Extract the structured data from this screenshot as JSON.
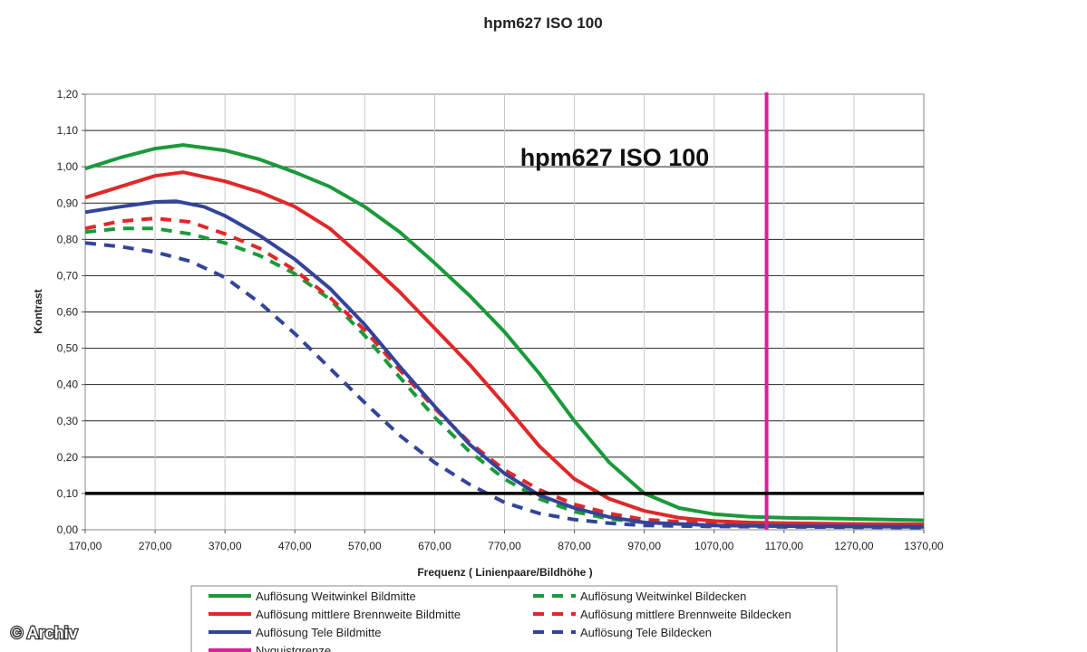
{
  "chart_data": {
    "type": "line",
    "title": "hpm627 ISO 100",
    "inner_title": "hpm627 ISO 100",
    "xlabel": "Frequenz ( Linienpaare/Bildhöhe )",
    "ylabel": "Kontrast",
    "xlim": [
      170,
      1370
    ],
    "ylim": [
      0,
      1.2
    ],
    "x_ticks": [
      "170,00",
      "270,00",
      "370,00",
      "470,00",
      "570,00",
      "670,00",
      "770,00",
      "870,00",
      "970,00",
      "1070,00",
      "1170,00",
      "1270,00",
      "1370,00"
    ],
    "y_ticks": [
      "0,00",
      "0,10",
      "0,20",
      "0,30",
      "0,40",
      "0,50",
      "0,60",
      "0,70",
      "0,80",
      "0,90",
      "1,00",
      "1,10",
      "1,20"
    ],
    "grid": true,
    "legend_position": "bottom",
    "reference_line": {
      "y": 0.1,
      "color": "#000000"
    },
    "series": [
      {
        "name": "Auflösung Weitwinkel Bildmitte",
        "color": "#1a9a3a",
        "dash": false,
        "points": [
          [
            170,
            0.995
          ],
          [
            220,
            1.025
          ],
          [
            270,
            1.05
          ],
          [
            310,
            1.06
          ],
          [
            370,
            1.045
          ],
          [
            420,
            1.02
          ],
          [
            470,
            0.985
          ],
          [
            520,
            0.945
          ],
          [
            570,
            0.89
          ],
          [
            620,
            0.82
          ],
          [
            670,
            0.735
          ],
          [
            720,
            0.645
          ],
          [
            770,
            0.545
          ],
          [
            820,
            0.43
          ],
          [
            870,
            0.3
          ],
          [
            920,
            0.185
          ],
          [
            970,
            0.1
          ],
          [
            1020,
            0.06
          ],
          [
            1070,
            0.043
          ],
          [
            1120,
            0.036
          ],
          [
            1170,
            0.033
          ],
          [
            1270,
            0.03
          ],
          [
            1370,
            0.026
          ]
        ]
      },
      {
        "name": "Auflösung Weitwinkel Bildecken",
        "color": "#1a9a3a",
        "dash": true,
        "points": [
          [
            170,
            0.82
          ],
          [
            220,
            0.83
          ],
          [
            270,
            0.83
          ],
          [
            320,
            0.815
          ],
          [
            370,
            0.79
          ],
          [
            420,
            0.755
          ],
          [
            470,
            0.705
          ],
          [
            520,
            0.635
          ],
          [
            570,
            0.535
          ],
          [
            620,
            0.42
          ],
          [
            670,
            0.31
          ],
          [
            720,
            0.215
          ],
          [
            770,
            0.14
          ],
          [
            820,
            0.085
          ],
          [
            870,
            0.05
          ],
          [
            920,
            0.03
          ],
          [
            970,
            0.02
          ],
          [
            1070,
            0.013
          ],
          [
            1170,
            0.01
          ],
          [
            1370,
            0.008
          ]
        ]
      },
      {
        "name": "Auflösung mittlere Brennweite Bildmitte",
        "color": "#e02828",
        "dash": false,
        "points": [
          [
            170,
            0.915
          ],
          [
            220,
            0.945
          ],
          [
            270,
            0.975
          ],
          [
            310,
            0.985
          ],
          [
            370,
            0.96
          ],
          [
            420,
            0.93
          ],
          [
            470,
            0.89
          ],
          [
            520,
            0.83
          ],
          [
            570,
            0.745
          ],
          [
            620,
            0.655
          ],
          [
            670,
            0.555
          ],
          [
            720,
            0.455
          ],
          [
            770,
            0.345
          ],
          [
            820,
            0.23
          ],
          [
            870,
            0.14
          ],
          [
            920,
            0.085
          ],
          [
            970,
            0.052
          ],
          [
            1020,
            0.033
          ],
          [
            1070,
            0.024
          ],
          [
            1120,
            0.02
          ],
          [
            1170,
            0.018
          ],
          [
            1270,
            0.016
          ],
          [
            1370,
            0.015
          ]
        ]
      },
      {
        "name": "Auflösung mittlere Brennweite Bildecken",
        "color": "#e02828",
        "dash": true,
        "points": [
          [
            170,
            0.83
          ],
          [
            220,
            0.85
          ],
          [
            270,
            0.858
          ],
          [
            320,
            0.848
          ],
          [
            370,
            0.815
          ],
          [
            420,
            0.775
          ],
          [
            470,
            0.715
          ],
          [
            520,
            0.64
          ],
          [
            570,
            0.55
          ],
          [
            620,
            0.44
          ],
          [
            670,
            0.335
          ],
          [
            720,
            0.24
          ],
          [
            770,
            0.165
          ],
          [
            820,
            0.11
          ],
          [
            870,
            0.07
          ],
          [
            920,
            0.045
          ],
          [
            970,
            0.028
          ],
          [
            1070,
            0.017
          ],
          [
            1170,
            0.013
          ],
          [
            1370,
            0.01
          ]
        ]
      },
      {
        "name": "Auflösung Tele Bildmitte",
        "color": "#33449a",
        "dash": false,
        "points": [
          [
            170,
            0.875
          ],
          [
            220,
            0.89
          ],
          [
            270,
            0.903
          ],
          [
            300,
            0.905
          ],
          [
            340,
            0.89
          ],
          [
            370,
            0.865
          ],
          [
            420,
            0.81
          ],
          [
            470,
            0.745
          ],
          [
            520,
            0.665
          ],
          [
            570,
            0.565
          ],
          [
            620,
            0.45
          ],
          [
            670,
            0.34
          ],
          [
            720,
            0.235
          ],
          [
            770,
            0.155
          ],
          [
            820,
            0.095
          ],
          [
            870,
            0.06
          ],
          [
            920,
            0.035
          ],
          [
            970,
            0.02
          ],
          [
            1070,
            0.012
          ],
          [
            1170,
            0.01
          ],
          [
            1370,
            0.008
          ]
        ]
      },
      {
        "name": "Auflösung Tele Bildecken",
        "color": "#33449a",
        "dash": true,
        "points": [
          [
            170,
            0.79
          ],
          [
            220,
            0.78
          ],
          [
            270,
            0.765
          ],
          [
            320,
            0.74
          ],
          [
            370,
            0.695
          ],
          [
            420,
            0.625
          ],
          [
            470,
            0.54
          ],
          [
            520,
            0.445
          ],
          [
            570,
            0.35
          ],
          [
            620,
            0.26
          ],
          [
            670,
            0.185
          ],
          [
            720,
            0.125
          ],
          [
            770,
            0.075
          ],
          [
            820,
            0.045
          ],
          [
            870,
            0.028
          ],
          [
            920,
            0.018
          ],
          [
            970,
            0.012
          ],
          [
            1070,
            0.009
          ],
          [
            1370,
            0.006
          ]
        ]
      },
      {
        "name": "Nyquistgrenze",
        "color": "#d0249a",
        "dash": false,
        "vertical": true,
        "x": 1145
      }
    ]
  },
  "watermark": "© Archiv"
}
